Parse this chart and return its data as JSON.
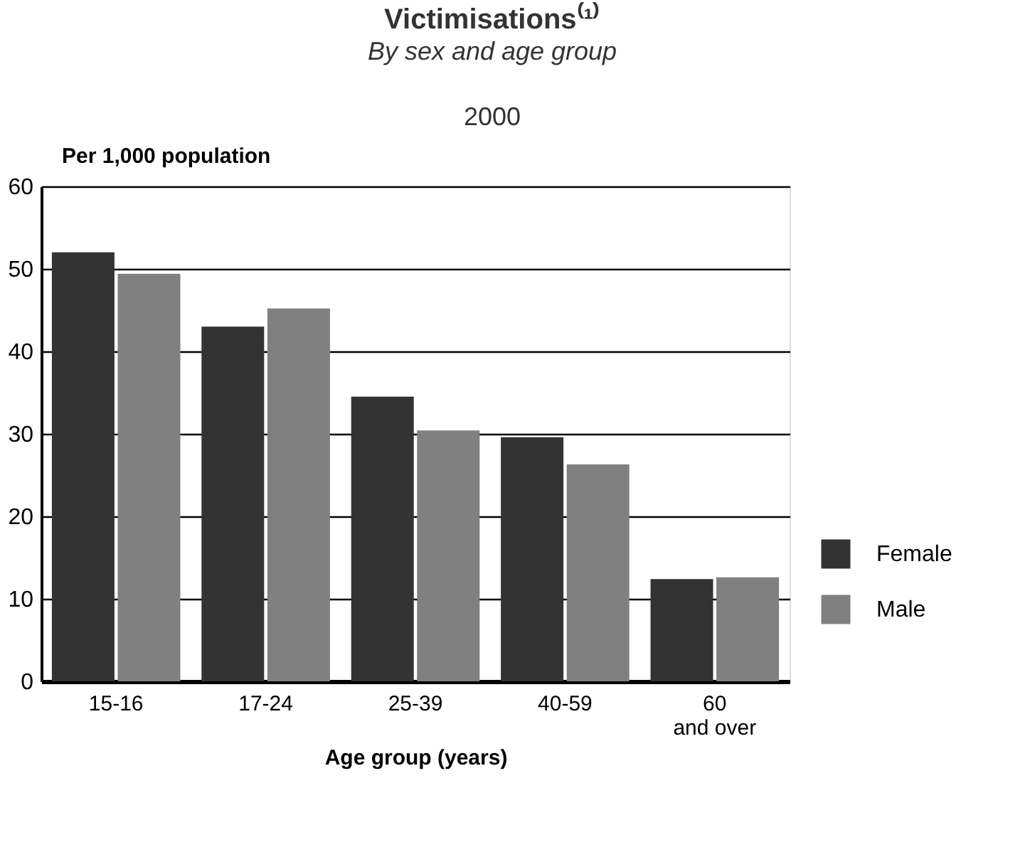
{
  "chart_data": {
    "type": "bar",
    "title": "Victimisations⁽¹⁾",
    "subtitle": "By sex and age group",
    "annotations": [
      "2000"
    ],
    "xlabel": "Age group (years)",
    "ylabel": "Per 1,000 population",
    "categories": [
      "15-16",
      "17-24",
      "25-39",
      "40-59",
      "60\nand over"
    ],
    "series": [
      {
        "name": "Female",
        "color": "#333333",
        "values": [
          52.0,
          43.0,
          34.5,
          29.6,
          12.4
        ]
      },
      {
        "name": "Male",
        "color": "#808080",
        "values": [
          49.4,
          45.2,
          30.4,
          26.3,
          12.6
        ]
      }
    ],
    "ylim": [
      0,
      60
    ],
    "yticks": [
      0,
      10,
      20,
      30,
      40,
      50,
      60
    ],
    "grid": "y",
    "legend": "right"
  }
}
